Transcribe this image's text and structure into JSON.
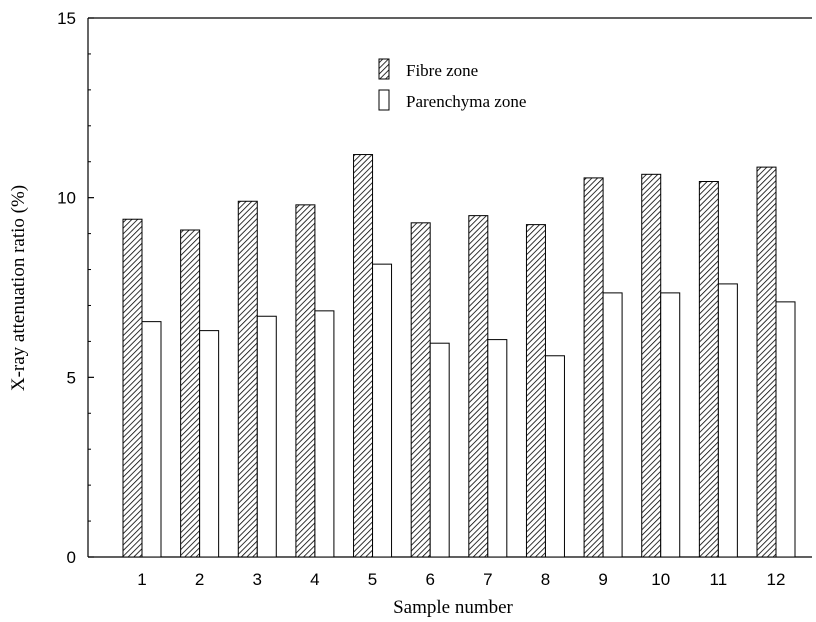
{
  "chart_data": {
    "type": "bar",
    "categories": [
      "1",
      "2",
      "3",
      "4",
      "5",
      "6",
      "7",
      "8",
      "9",
      "10",
      "11",
      "12"
    ],
    "series": [
      {
        "name": "Fibre zone",
        "values": [
          9.4,
          9.1,
          9.9,
          9.8,
          11.2,
          9.3,
          9.5,
          9.25,
          10.55,
          10.65,
          10.45,
          10.85
        ],
        "fill": "hatched"
      },
      {
        "name": "Parenchyma zone",
        "values": [
          6.55,
          6.3,
          6.7,
          6.85,
          8.15,
          5.95,
          6.05,
          5.6,
          7.35,
          7.35,
          7.6,
          7.1
        ],
        "fill": "white"
      }
    ],
    "xlabel": "Sample number",
    "ylabel": "X-ray attenuation ratio (%)",
    "ylim": [
      0,
      15
    ],
    "yticks": [
      "0",
      "5",
      "10",
      "15"
    ],
    "legend_position": "top-center",
    "grid": false,
    "colors": {
      "stroke": "#000000",
      "background": "#ffffff"
    }
  }
}
